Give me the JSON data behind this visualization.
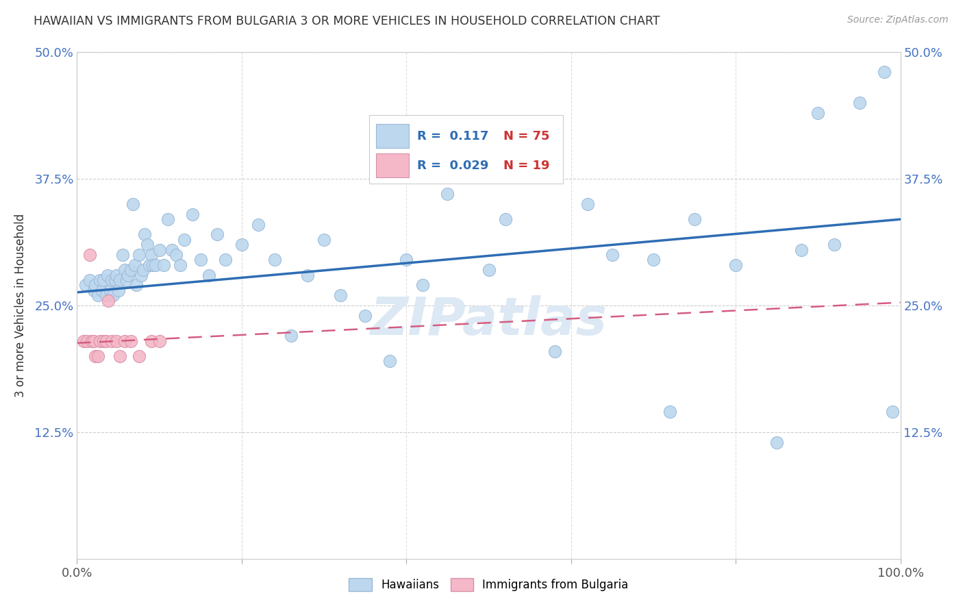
{
  "title": "HAWAIIAN VS IMMIGRANTS FROM BULGARIA 3 OR MORE VEHICLES IN HOUSEHOLD CORRELATION CHART",
  "source": "Source: ZipAtlas.com",
  "ylabel": "3 or more Vehicles in Household",
  "xlim": [
    0,
    1.0
  ],
  "ylim": [
    0,
    0.5
  ],
  "xticks": [
    0.0,
    0.2,
    0.4,
    0.6,
    0.8,
    1.0
  ],
  "xticklabels": [
    "0.0%",
    "",
    "",
    "",
    "",
    "100.0%"
  ],
  "yticks": [
    0.0,
    0.125,
    0.25,
    0.375,
    0.5
  ],
  "yticklabels_left": [
    "",
    "12.5%",
    "25.0%",
    "37.5%",
    "50.0%"
  ],
  "yticklabels_right": [
    "",
    "12.5%",
    "25.0%",
    "37.5%",
    "50.0%"
  ],
  "hawaiian_color": "#bdd7ee",
  "hawaiian_edge": "#9ab8d8",
  "bulgaria_color": "#f4b8c8",
  "bulgaria_edge": "#d890a8",
  "trend_hawaiian_color": "#2e6db4",
  "trend_bulgaria_color": "#d45c80",
  "watermark_color": "#dce8f4",
  "hawaiian_x": [
    0.01,
    0.015,
    0.02,
    0.022,
    0.025,
    0.028,
    0.03,
    0.032,
    0.035,
    0.037,
    0.04,
    0.042,
    0.044,
    0.046,
    0.048,
    0.05,
    0.052,
    0.055,
    0.058,
    0.06,
    0.062,
    0.065,
    0.068,
    0.07,
    0.072,
    0.075,
    0.078,
    0.08,
    0.082,
    0.085,
    0.088,
    0.09,
    0.092,
    0.095,
    0.1,
    0.105,
    0.11,
    0.115,
    0.12,
    0.125,
    0.13,
    0.14,
    0.15,
    0.16,
    0.17,
    0.18,
    0.2,
    0.22,
    0.24,
    0.26,
    0.28,
    0.3,
    0.32,
    0.35,
    0.38,
    0.4,
    0.42,
    0.45,
    0.5,
    0.52,
    0.55,
    0.58,
    0.62,
    0.65,
    0.7,
    0.72,
    0.75,
    0.8,
    0.85,
    0.88,
    0.9,
    0.92,
    0.95,
    0.98,
    0.99
  ],
  "hawaiian_y": [
    0.27,
    0.275,
    0.265,
    0.27,
    0.26,
    0.275,
    0.265,
    0.275,
    0.26,
    0.28,
    0.265,
    0.275,
    0.26,
    0.275,
    0.28,
    0.265,
    0.275,
    0.3,
    0.285,
    0.275,
    0.28,
    0.285,
    0.35,
    0.29,
    0.27,
    0.3,
    0.28,
    0.285,
    0.32,
    0.31,
    0.29,
    0.3,
    0.29,
    0.29,
    0.305,
    0.29,
    0.335,
    0.305,
    0.3,
    0.29,
    0.315,
    0.34,
    0.295,
    0.28,
    0.32,
    0.295,
    0.31,
    0.33,
    0.295,
    0.22,
    0.28,
    0.315,
    0.26,
    0.24,
    0.195,
    0.295,
    0.27,
    0.36,
    0.285,
    0.335,
    0.38,
    0.205,
    0.35,
    0.3,
    0.295,
    0.145,
    0.335,
    0.29,
    0.115,
    0.305,
    0.44,
    0.31,
    0.45,
    0.48,
    0.145
  ],
  "bulgaria_x": [
    0.008,
    0.012,
    0.015,
    0.018,
    0.02,
    0.022,
    0.025,
    0.028,
    0.032,
    0.035,
    0.038,
    0.042,
    0.048,
    0.052,
    0.058,
    0.065,
    0.075,
    0.09,
    0.1
  ],
  "bulgaria_y": [
    0.215,
    0.215,
    0.3,
    0.215,
    0.215,
    0.2,
    0.2,
    0.215,
    0.215,
    0.215,
    0.255,
    0.215,
    0.215,
    0.2,
    0.215,
    0.215,
    0.2,
    0.215,
    0.215
  ],
  "legend_r1": "R =  0.117",
  "legend_n1": "N = 75",
  "legend_r2": "R =  0.029",
  "legend_n2": "N = 19"
}
